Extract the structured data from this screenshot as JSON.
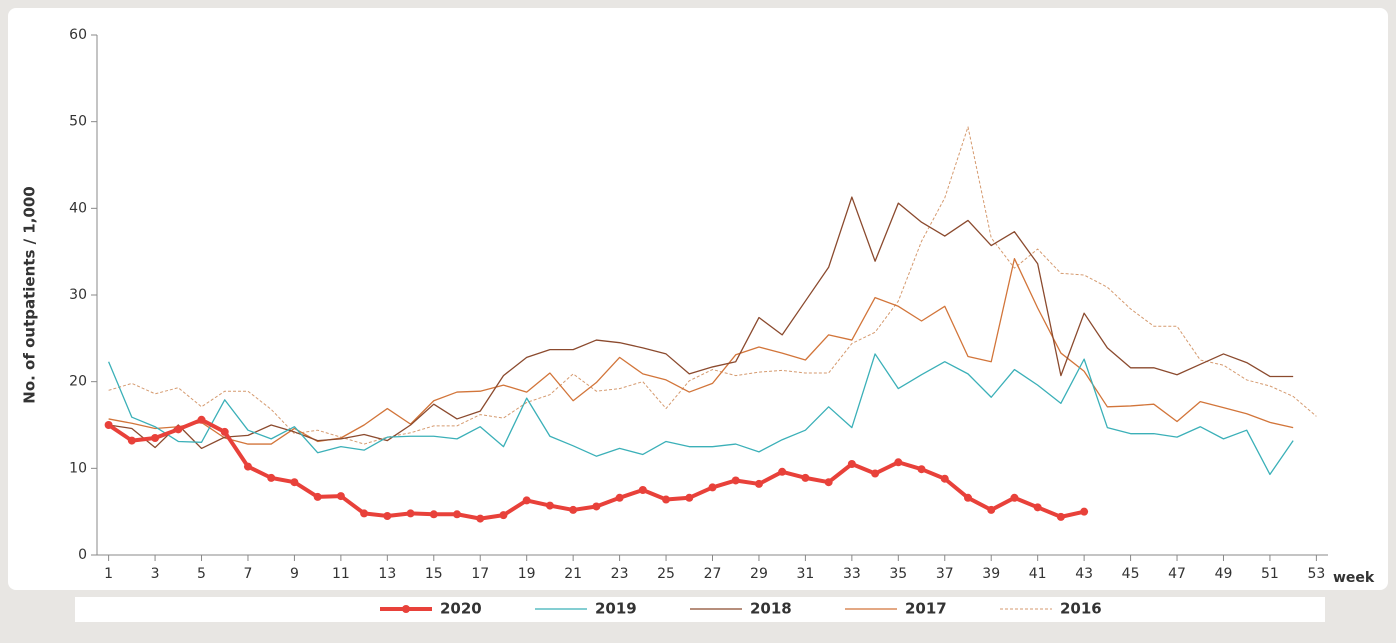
{
  "chart_data": {
    "type": "line",
    "ylabel": "No. of outpatients / 1,000",
    "xlabel": "week",
    "x": [
      1,
      2,
      3,
      4,
      5,
      6,
      7,
      8,
      9,
      10,
      11,
      12,
      13,
      14,
      15,
      16,
      17,
      18,
      19,
      20,
      21,
      22,
      23,
      24,
      25,
      26,
      27,
      28,
      29,
      30,
      31,
      32,
      33,
      34,
      35,
      36,
      37,
      38,
      39,
      40,
      41,
      42,
      43,
      44,
      45,
      46,
      47,
      48,
      49,
      50,
      51,
      52,
      53
    ],
    "xlim": [
      0.5,
      53.5
    ],
    "xticks": [
      1,
      3,
      5,
      7,
      9,
      11,
      13,
      15,
      17,
      19,
      21,
      23,
      25,
      27,
      29,
      31,
      33,
      35,
      37,
      39,
      41,
      43,
      45,
      47,
      49,
      51,
      53
    ],
    "ylim": [
      0,
      60
    ],
    "yticks": [
      0,
      10,
      20,
      30,
      40,
      50,
      60
    ],
    "series": [
      {
        "name": "2020",
        "color": "#e8413a",
        "width": 4,
        "marker": true,
        "values": [
          15,
          13.2,
          13.5,
          14.5,
          15.6,
          14.2,
          10.2,
          8.9,
          8.4,
          6.7,
          6.8,
          4.8,
          4.5,
          4.8,
          4.7,
          4.7,
          4.2,
          4.6,
          6.3,
          5.7,
          5.2,
          5.6,
          6.6,
          7.5,
          6.4,
          6.6,
          7.8,
          8.6,
          8.2,
          9.6,
          8.9,
          8.4,
          10.5,
          9.4,
          10.7,
          9.9,
          8.8,
          6.6,
          5.2,
          6.6,
          5.5,
          4.4,
          5.0,
          null,
          null,
          null,
          null,
          null,
          null,
          null,
          null,
          null,
          null
        ]
      },
      {
        "name": "2019",
        "color": "#3bb0b8",
        "width": 1.3,
        "values": [
          22.3,
          15.9,
          14.8,
          13.1,
          13.0,
          17.9,
          14.4,
          13.4,
          14.8,
          11.8,
          12.5,
          12.1,
          13.6,
          13.7,
          13.7,
          13.4,
          14.8,
          12.5,
          18.1,
          13.7,
          12.6,
          11.4,
          12.3,
          11.6,
          13.1,
          12.5,
          12.5,
          12.8,
          11.9,
          13.3,
          14.4,
          17.1,
          14.7,
          23.2,
          19.2,
          20.8,
          22.3,
          20.9,
          18.2,
          21.4,
          19.6,
          17.5,
          22.6,
          14.7,
          14.0,
          14.0,
          13.6,
          14.8,
          13.4,
          14.4,
          9.3,
          13.2,
          null
        ]
      },
      {
        "name": "2018",
        "color": "#8b4a2e",
        "width": 1.3,
        "values": [
          15.0,
          14.6,
          12.4,
          15.0,
          12.3,
          13.6,
          13.8,
          15.0,
          14.2,
          13.2,
          13.4,
          13.9,
          13.2,
          15.0,
          17.4,
          15.7,
          16.6,
          20.7,
          22.8,
          23.7,
          23.7,
          24.8,
          24.5,
          23.9,
          23.2,
          20.9,
          21.7,
          22.3,
          27.4,
          25.4,
          29.3,
          33.2,
          41.3,
          33.9,
          40.6,
          38.4,
          36.8,
          38.6,
          35.7,
          37.3,
          33.6,
          20.7,
          27.9,
          23.9,
          21.6,
          21.6,
          20.8,
          22.0,
          23.2,
          22.2,
          20.6,
          20.6,
          null
        ]
      },
      {
        "name": "2017",
        "color": "#d2753a",
        "width": 1.3,
        "values": [
          15.7,
          15.2,
          14.6,
          14.8,
          15.3,
          13.5,
          12.8,
          12.8,
          14.6,
          13.1,
          13.5,
          15.0,
          16.9,
          15.1,
          17.8,
          18.8,
          18.9,
          19.6,
          18.8,
          21.0,
          17.8,
          19.9,
          22.8,
          20.9,
          20.2,
          18.8,
          19.8,
          23.1,
          24.0,
          23.3,
          22.5,
          25.4,
          24.8,
          29.7,
          28.7,
          27.0,
          28.7,
          22.9,
          22.3,
          34.2,
          28.5,
          23.3,
          21.2,
          17.1,
          17.2,
          17.4,
          15.4,
          17.7,
          17.0,
          16.3,
          15.3,
          14.7,
          null
        ]
      },
      {
        "name": "2016",
        "color": "#d59a6f",
        "width": 1,
        "dash": true,
        "values": [
          19.0,
          19.8,
          18.6,
          19.3,
          17.1,
          18.9,
          18.9,
          16.8,
          14.0,
          14.4,
          13.6,
          12.8,
          13.6,
          14.1,
          14.9,
          14.9,
          16.2,
          15.8,
          17.6,
          18.5,
          20.9,
          18.9,
          19.2,
          20.0,
          16.9,
          20.1,
          21.4,
          20.7,
          21.1,
          21.3,
          21.0,
          21.0,
          24.4,
          25.7,
          29.3,
          36.2,
          41.2,
          49.4,
          36.6,
          33.1,
          35.3,
          32.5,
          32.3,
          30.9,
          28.4,
          26.4,
          26.4,
          22.5,
          21.9,
          20.2,
          19.5,
          18.3,
          16.0
        ]
      }
    ]
  }
}
